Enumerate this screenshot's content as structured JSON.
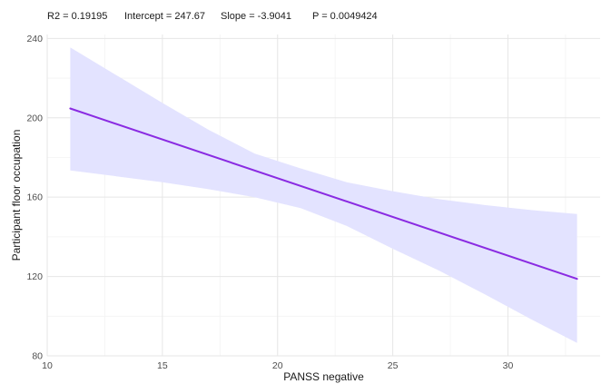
{
  "chart_data": {
    "type": "line",
    "stats": {
      "r2": "R2 =  0.19195",
      "intercept": "Intercept = 247.67",
      "slope": "Slope = -3.9041",
      "p": "P = 0.0049424"
    },
    "xlabel": "PANSS negative",
    "ylabel": "Participant floor occupation",
    "xlim": [
      10,
      34
    ],
    "ylim": [
      80,
      242
    ],
    "x_ticks": [
      10,
      15,
      20,
      25,
      30
    ],
    "y_ticks": [
      80,
      120,
      160,
      200,
      240
    ],
    "grid": true,
    "fit_line": {
      "x": [
        11,
        33
      ],
      "y": [
        204.7,
        118.8
      ],
      "color": "#8a2be2"
    },
    "confidence_band": {
      "color": "#e3e3ff",
      "x": [
        11,
        13,
        15,
        17,
        19,
        21,
        23,
        25,
        27,
        29,
        31,
        33
      ],
      "upper": [
        235.5,
        221.5,
        207.5,
        194,
        182,
        174.5,
        167.5,
        163,
        159,
        156,
        153.5,
        151.5
      ],
      "lower": [
        173.5,
        170.5,
        167.5,
        164,
        160,
        154.5,
        145.5,
        134,
        123,
        111,
        98.5,
        86.5
      ]
    }
  }
}
